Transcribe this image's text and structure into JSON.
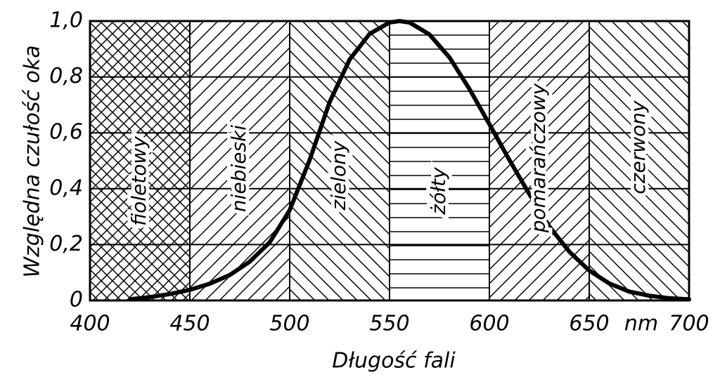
{
  "chart_data": {
    "type": "line",
    "x_label": "Długość fali",
    "y_label": "Względna czułość oka",
    "x_unit": "nm",
    "xlim": [
      400,
      700
    ],
    "ylim": [
      0,
      1
    ],
    "xticks": [
      400,
      450,
      500,
      550,
      600,
      650,
      700
    ],
    "yticks": [
      0,
      {
        "value": 0.2,
        "label": "0,2"
      },
      {
        "value": 0.4,
        "label": "0,4"
      },
      {
        "value": 0.6,
        "label": "0,6"
      },
      {
        "value": 0.8,
        "label": "0,8"
      },
      {
        "value": 1,
        "label": "1,0"
      }
    ],
    "grid": true,
    "bands": [
      {
        "label": "fioletowy",
        "range": [
          400,
          450
        ]
      },
      {
        "label": "niebieski",
        "range": [
          450,
          500
        ]
      },
      {
        "label": "zielony",
        "range": [
          500,
          550
        ]
      },
      {
        "label": "żółty",
        "range": [
          550,
          600
        ]
      },
      {
        "label": "pomarańczowy",
        "range": [
          600,
          650
        ]
      },
      {
        "label": "czerwony",
        "range": [
          650,
          700
        ]
      }
    ],
    "x": [
      420,
      430,
      440,
      450,
      460,
      470,
      480,
      490,
      500,
      510,
      520,
      530,
      540,
      550,
      555,
      560,
      570,
      580,
      590,
      600,
      610,
      620,
      630,
      640,
      650,
      660,
      670,
      680,
      690,
      700
    ],
    "series": [
      {
        "color": "#000000",
        "values": [
          0.004,
          0.012,
          0.023,
          0.038,
          0.06,
          0.091,
          0.139,
          0.208,
          0.323,
          0.503,
          0.71,
          0.862,
          0.954,
          0.995,
          1.0,
          0.995,
          0.952,
          0.87,
          0.757,
          0.631,
          0.503,
          0.381,
          0.265,
          0.175,
          0.107,
          0.061,
          0.032,
          0.017,
          0.008,
          0.004
        ]
      }
    ]
  }
}
